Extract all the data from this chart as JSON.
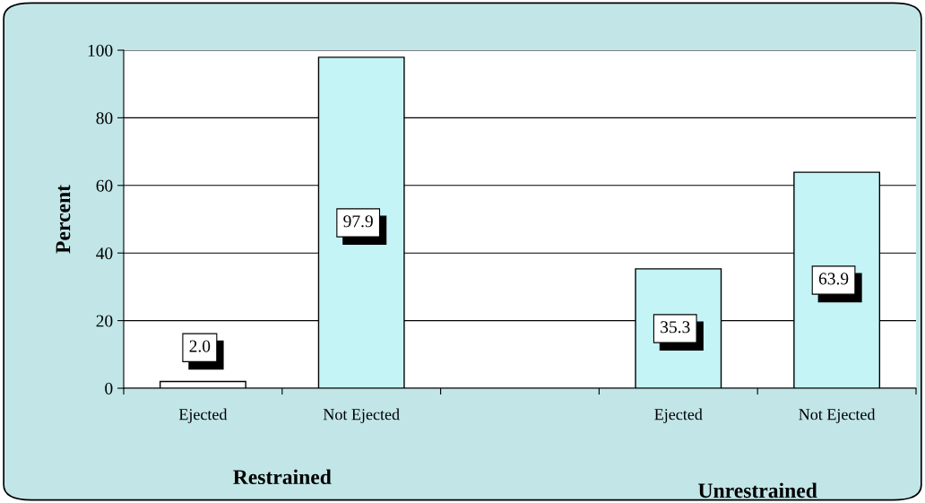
{
  "chart_data": {
    "type": "bar",
    "categories": [
      "Ejected",
      "Not Ejected",
      null,
      "Ejected",
      "Not Ejected"
    ],
    "values": [
      2.0,
      97.9,
      null,
      35.3,
      63.9
    ],
    "colors": [
      "#ffffff",
      "#c4f4f6",
      "#c4f4f6",
      "#c4f4f6",
      "#c4f4f6"
    ],
    "ylabel": "Percent",
    "ylim": [
      0,
      100
    ],
    "yticks": [
      0,
      20,
      40,
      60,
      80,
      100
    ],
    "grid": "y",
    "value_labels": [
      "2.0",
      "97.9",
      null,
      "35.3",
      "63.9"
    ],
    "annotations": [
      "Restrained",
      "Unrestrained"
    ]
  }
}
